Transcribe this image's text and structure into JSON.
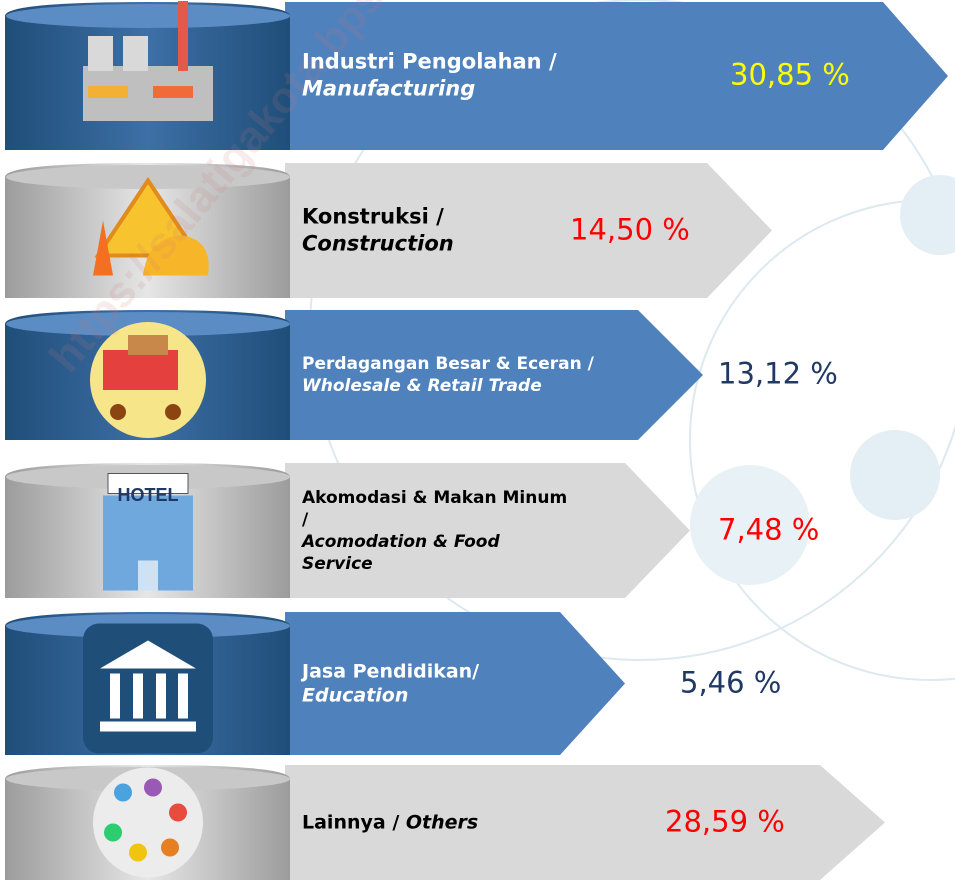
{
  "watermark": "https://salatigakota.bps.go.id",
  "rows": [
    {
      "label_id": "Industri Pengolahan /",
      "label_en": "Manufacturing",
      "value": "30,85 %"
    },
    {
      "label_id": "Konstruksi /",
      "label_en": "Construction",
      "value": "14,50 %"
    },
    {
      "label_id": "Perdagangan Besar & Eceran /",
      "label_en": "Wholesale & Retail Trade",
      "value": "13,12 %"
    },
    {
      "label_id": "Akomodasi & Makan Minum /",
      "label_en": "Acomodation & Food Service",
      "value": "7,48 %",
      "icon_text": "HOTEL"
    },
    {
      "label_id": "Jasa Pendidikan/",
      "label_en": "Education",
      "value": "5,46 %"
    },
    {
      "label_id": "Lainnya /",
      "label_en": "Others",
      "value": "28,59 %"
    }
  ]
}
